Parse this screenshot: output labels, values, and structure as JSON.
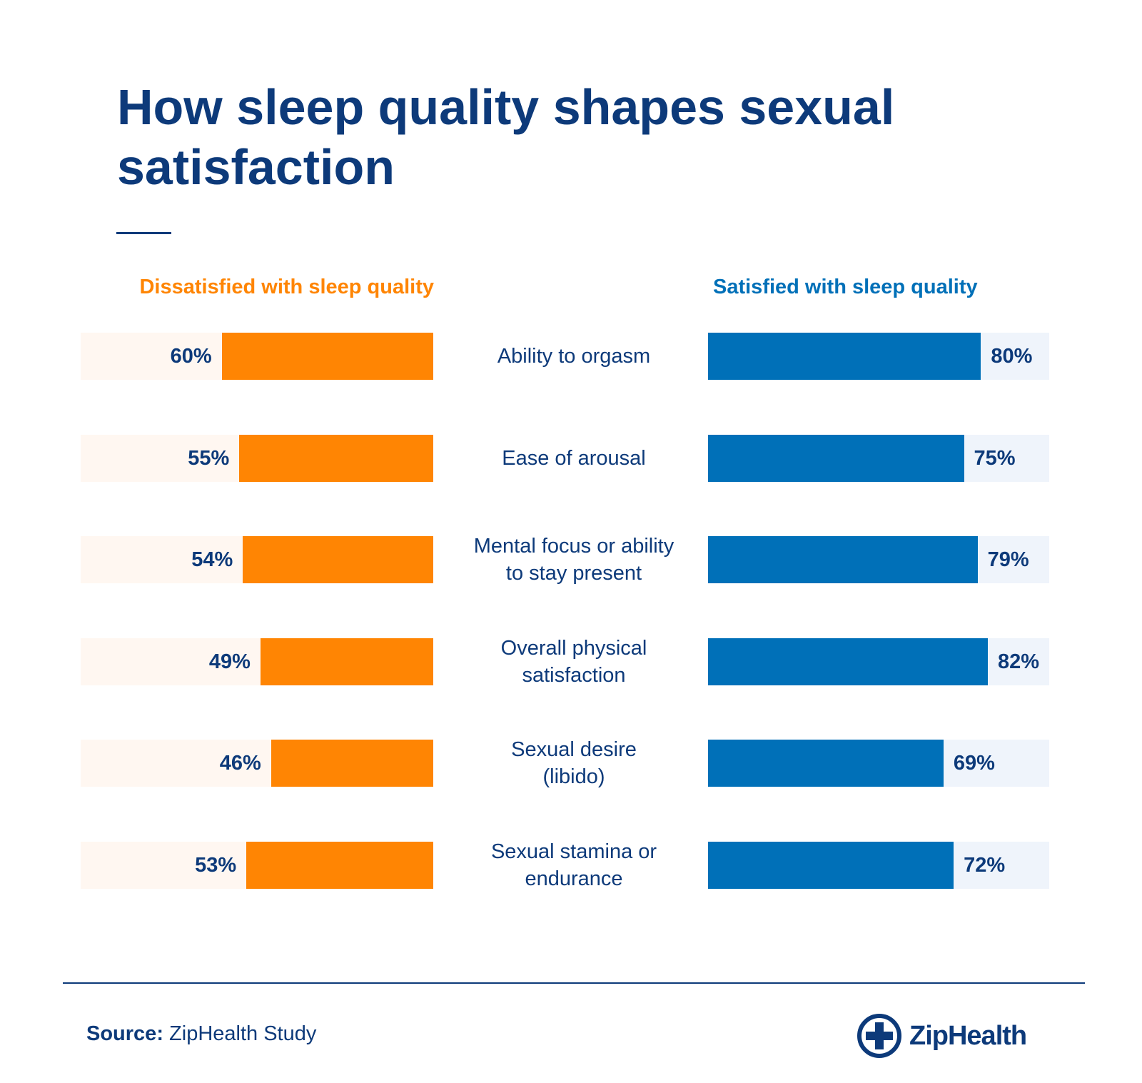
{
  "title": "How sleep quality shapes sexual satisfaction",
  "chart_data": {
    "type": "bar",
    "title": "How sleep quality shapes sexual satisfaction",
    "categories": [
      "Ability to orgasm",
      "Ease of arousal",
      "Mental focus or ability to stay present",
      "Overall physical satisfaction",
      "Sexual desire (libido)",
      "Sexual stamina or endurance"
    ],
    "category_lines": [
      [
        "Ability to orgasm"
      ],
      [
        "Ease of arousal"
      ],
      [
        "Mental focus or ability",
        "to stay present"
      ],
      [
        "Overall physical",
        "satisfaction"
      ],
      [
        "Sexual desire",
        "(libido)"
      ],
      [
        "Sexual stamina or",
        "endurance"
      ]
    ],
    "series": [
      {
        "name": "Dissatisfied with sleep quality",
        "color": "#ff8503",
        "values": [
          60,
          55,
          54,
          49,
          46,
          53
        ],
        "labels": [
          "60%",
          "55%",
          "54%",
          "49%",
          "46%",
          "53%"
        ]
      },
      {
        "name": "Satisfied with sleep quality",
        "color": "#0070b8",
        "values": [
          80,
          75,
          79,
          82,
          69,
          72
        ],
        "labels": [
          "80%",
          "75%",
          "79%",
          "82%",
          "69%",
          "72%"
        ]
      }
    ],
    "xlim": [
      0,
      100
    ],
    "unit": "%"
  },
  "footer": {
    "source_label": "Source:",
    "source_value": "ZipHealth Study"
  },
  "logo": {
    "text": "ZipHealth"
  }
}
